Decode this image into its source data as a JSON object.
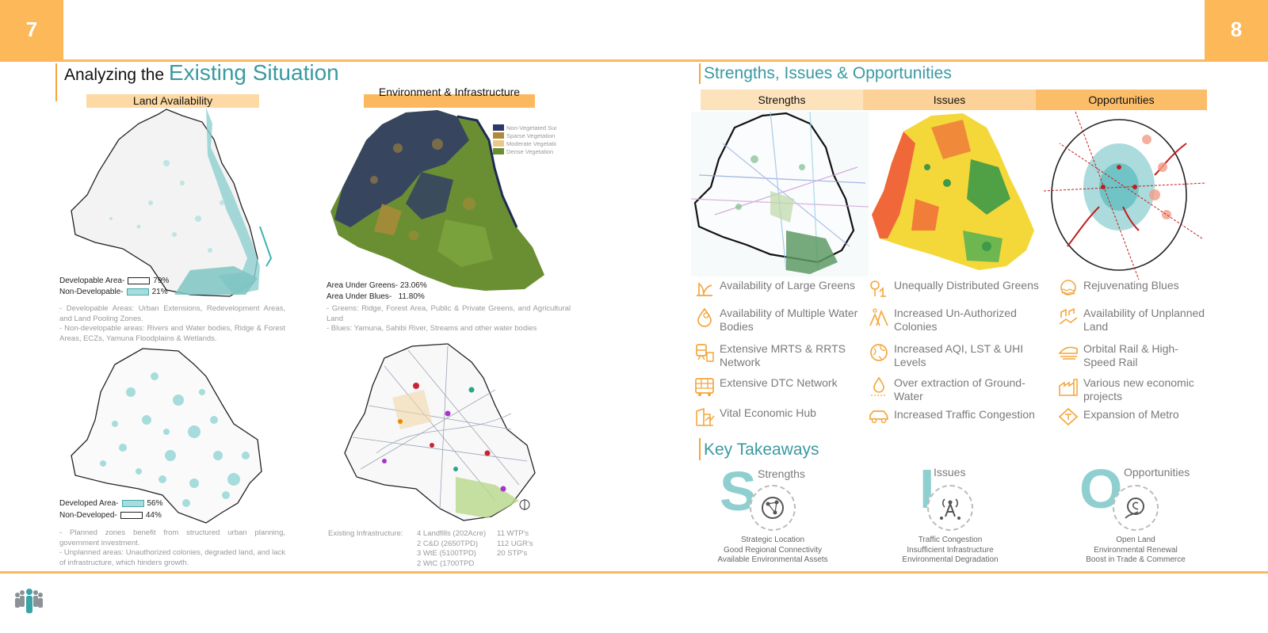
{
  "pages": {
    "left": "7",
    "right": "8"
  },
  "left_title": {
    "prefix": "Analyzing the ",
    "highlight": "Existing Situation"
  },
  "land": {
    "label": "Land Availability",
    "developable": {
      "label": "Developable Area-",
      "value": "79%"
    },
    "non_developable": {
      "label": "Non-Developable-",
      "value": "21%"
    },
    "notes1": [
      "- Developable Areas: Urban Extensions, Redevelopment Areas, and Land Pooling Zones.",
      "- Non-developable areas: Rivers and Water bodies, Ridge & Forest Areas, ECZs, Yamuna Floodplains & Wetlands."
    ],
    "developed": {
      "label": "Developed Area-",
      "value": "56%"
    },
    "non_developed": {
      "label": "Non-Developed-",
      "value": "44%"
    },
    "notes2": [
      "- Planned zones benefit from structured urban planning, government investment.",
      "- Unplanned areas: Unauthorized colonies, degraded land, and lack of infrastructure, which hinders growth."
    ]
  },
  "env": {
    "label": "Environment & Infrastructure",
    "legend": [
      "Non-Vegetated Surfaces",
      "Sparse Vegetation",
      "Moderate Vegetation",
      "Dense Vegetation"
    ],
    "greens": "Area Under Greens- 23.06%",
    "blues": "Area Under Blues-   11.80%",
    "notes": [
      "-   Greens: Ridge, Forest Area, Public & Private Greens, and Agricultural Land",
      "-   Blues: Yamuna, Sahibi River, Streams and other water bodies"
    ],
    "infra_label": "Existing Infrastructure:",
    "infra_col1": [
      "4 Landfills (202Acre)",
      "2 C&D (2650TPD)",
      "3 WtE (5100TPD)",
      "2 WtC (1700TPD"
    ],
    "infra_col2": [
      "11 WTP's",
      "112 UGR's",
      "20 STP's"
    ]
  },
  "sio": {
    "title": "Strengths, Issues & Opportunities",
    "headers": [
      "Strengths",
      "Issues",
      "Opportunities"
    ],
    "strengths": [
      "Availability of Large Greens",
      "Availability of Multiple Water Bodies",
      "Extensive MRTS & RRTS Network",
      "Extensive DTC Network",
      "Vital Economic Hub"
    ],
    "issues": [
      "Unequally Distributed Greens",
      "Increased Un-Authorized Colonies",
      "Increased AQI, LST & UHI Levels",
      "Over extraction of Ground-Water",
      "Increased Traffic Congestion"
    ],
    "opportunities": [
      "Rejuvenating Blues",
      "Availability of Unplanned Land",
      "Orbital Rail & High-Speed Rail",
      "Various new economic projects",
      "Expansion of Metro"
    ]
  },
  "takeaways": {
    "title": "Key Takeaways",
    "s": {
      "letter": "S",
      "label": "Strengths",
      "lines": [
        "Strategic Location",
        "Good Regional Connectivity",
        "Available Environmental Assets"
      ]
    },
    "i": {
      "letter": "I",
      "label": "Issues",
      "lines": [
        "Traffic Congestion",
        "Insufficient Infrastructure",
        "Environmental Degradation"
      ]
    },
    "o": {
      "letter": "O",
      "label": "Opportunities",
      "lines": [
        "Open Land",
        "Environmental Renewal",
        "Boost in Trade & Commerce"
      ]
    }
  },
  "colors": {
    "accent": "#fdb85a",
    "teal": "#3a9aa1",
    "icon": "#f4a63c"
  }
}
